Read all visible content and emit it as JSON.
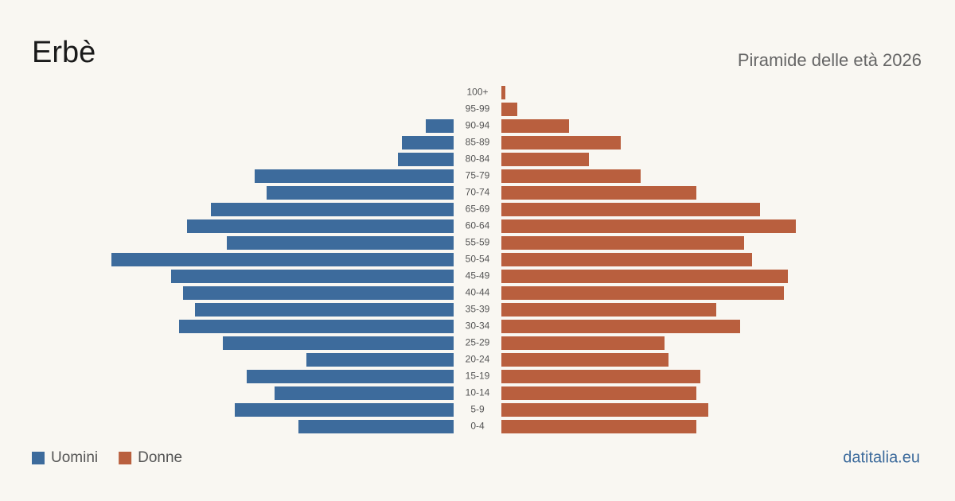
{
  "chart_data": {
    "type": "pyramid",
    "title": "Erbè",
    "subtitle": "Piramide delle età 2026",
    "source": "datitalia.eu",
    "categories": [
      "100+",
      "95-99",
      "90-94",
      "85-89",
      "80-84",
      "75-79",
      "70-74",
      "65-69",
      "60-64",
      "55-59",
      "50-54",
      "45-49",
      "40-44",
      "35-39",
      "30-34",
      "25-29",
      "20-24",
      "15-19",
      "10-14",
      "5-9",
      "0-4"
    ],
    "series": [
      {
        "name": "Uomini",
        "color": "#3d6b9c",
        "values": [
          0,
          0,
          7,
          13,
          14,
          50,
          47,
          61,
          67,
          57,
          86,
          71,
          68,
          65,
          69,
          58,
          37,
          52,
          45,
          55,
          39
        ]
      },
      {
        "name": "Donne",
        "color": "#b95f3e",
        "values": [
          1,
          4,
          17,
          30,
          22,
          35,
          49,
          65,
          74,
          61,
          63,
          72,
          71,
          54,
          60,
          41,
          42,
          50,
          49,
          52,
          49
        ]
      }
    ]
  }
}
